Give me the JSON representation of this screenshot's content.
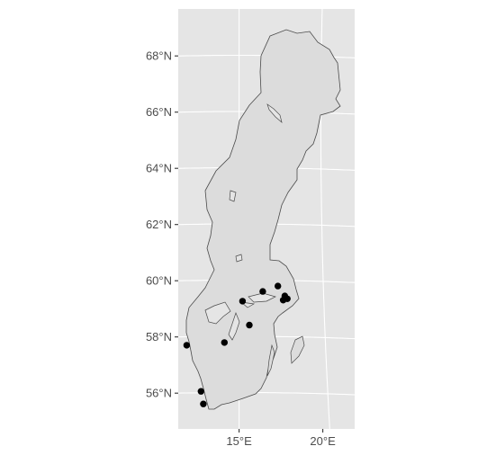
{
  "map": {
    "colors": {
      "panel_background": "#e5e5e5",
      "grid": "#ffffff",
      "land_fill": "#dcdcdc",
      "land_outline": "#4a4a4a",
      "points": "#000000",
      "axis_text": "#4d4d4d"
    },
    "y_axis": {
      "ticks": [
        {
          "value": 68,
          "label": "68°N"
        },
        {
          "value": 66,
          "label": "66°N"
        },
        {
          "value": 64,
          "label": "64°N"
        },
        {
          "value": 62,
          "label": "62°N"
        },
        {
          "value": 60,
          "label": "60°N"
        },
        {
          "value": 58,
          "label": "58°N"
        },
        {
          "value": 56,
          "label": "56°N"
        }
      ]
    },
    "x_axis": {
      "ticks": [
        {
          "value": 15,
          "label": "15°E"
        },
        {
          "value": 20,
          "label": "20°E"
        }
      ]
    },
    "points": [
      {
        "lon": 17.3,
        "lat": 59.8
      },
      {
        "lon": 16.4,
        "lat": 59.6
      },
      {
        "lon": 17.7,
        "lat": 59.45
      },
      {
        "lon": 17.85,
        "lat": 59.35
      },
      {
        "lon": 17.6,
        "lat": 59.3
      },
      {
        "lon": 15.2,
        "lat": 59.25
      },
      {
        "lon": 15.6,
        "lat": 58.4
      },
      {
        "lon": 14.15,
        "lat": 57.78
      },
      {
        "lon": 11.97,
        "lat": 57.7
      },
      {
        "lon": 12.85,
        "lat": 56.05
      },
      {
        "lon": 13.0,
        "lat": 55.6
      }
    ]
  }
}
